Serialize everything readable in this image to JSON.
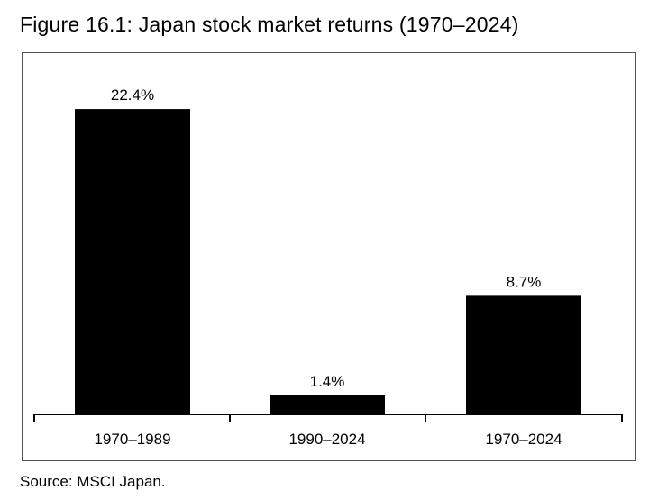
{
  "figure": {
    "title": "Figure 16.1: Japan stock market returns (1970–2024)",
    "source": "Source: MSCI Japan."
  },
  "chart_data": {
    "type": "bar",
    "title": "Figure 16.1: Japan stock market returns (1970–2024)",
    "categories": [
      "1970–1989",
      "1990–2024",
      "1970–2024"
    ],
    "values": [
      22.4,
      1.4,
      8.7
    ],
    "value_labels": [
      "22.4%",
      "1.4%",
      "8.7%"
    ],
    "unit": "%",
    "xlabel": "",
    "ylabel": "",
    "ylim": [
      0,
      24
    ],
    "grid": false,
    "legend": "none",
    "bar_color": "#000000",
    "source": "Source: MSCI Japan."
  }
}
